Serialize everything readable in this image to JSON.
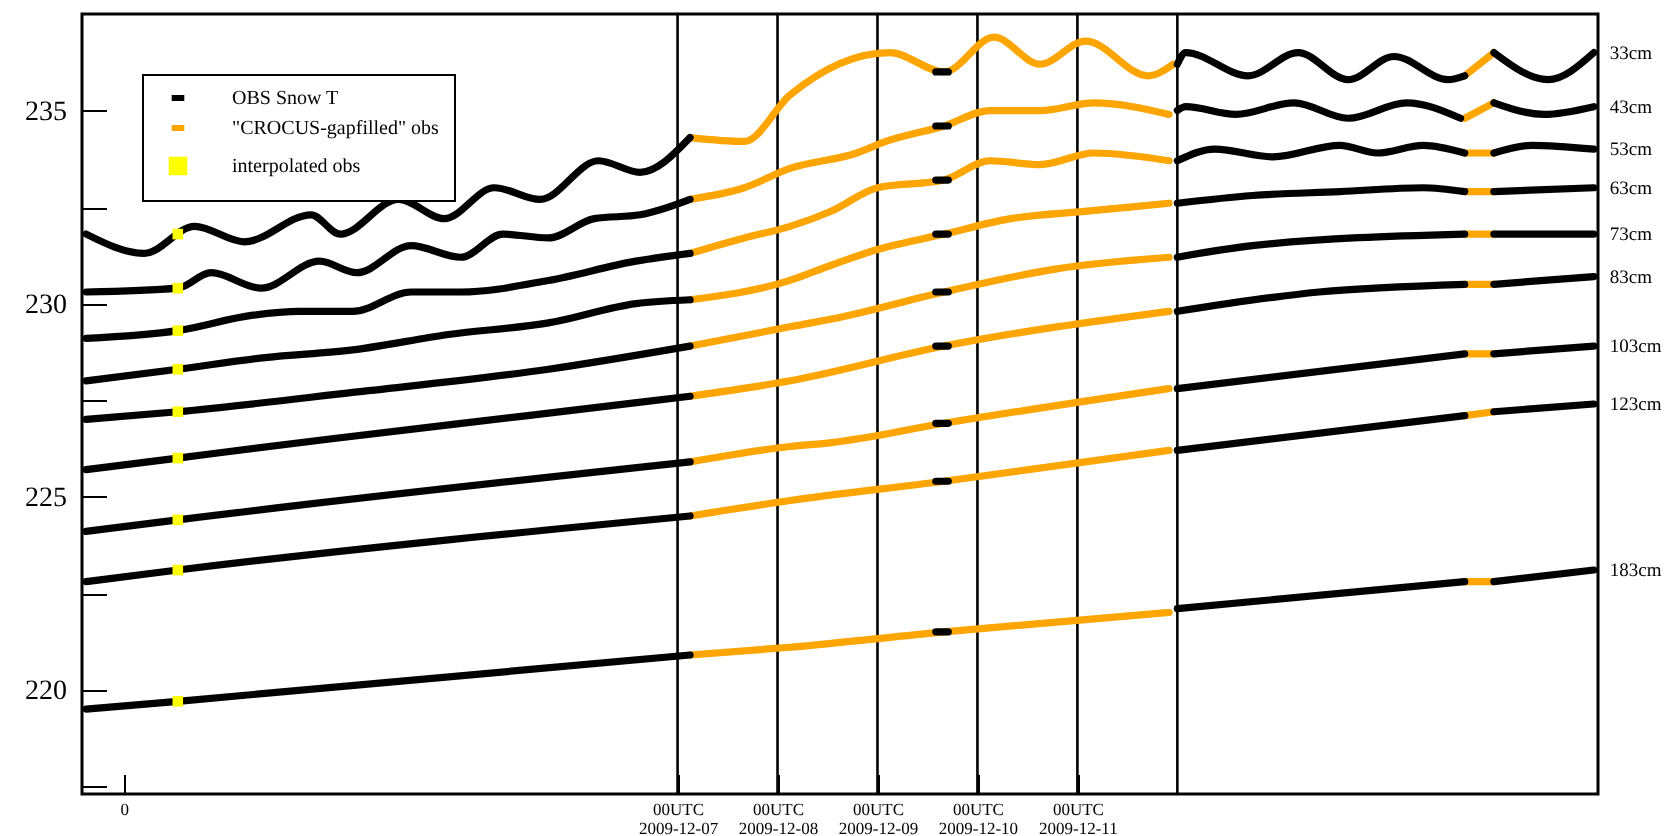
{
  "chart_data": {
    "type": "line",
    "legend": "top left",
    "xlim": [
      "2009-12-01T01:00",
      "2009-12-16T05:00"
    ],
    "ylim": [
      217.3,
      237.5
    ],
    "xticks": [
      {
        "value": "2009-12-01T11:00",
        "label": "0"
      },
      {
        "value": "2009-12-07T00:00",
        "label": "00UTC\n2009-12-07"
      },
      {
        "value": "2009-12-08T00:00",
        "label": "00UTC\n2009-12-08"
      },
      {
        "value": "2009-12-09T00:00",
        "label": "00UTC\n2009-12-09"
      },
      {
        "value": "2009-12-10T00:00",
        "label": "00UTC\n2009-12-10"
      },
      {
        "value": "2009-12-11T00:00",
        "label": "00UTC\n2009-12-11"
      }
    ],
    "yticks": [
      {
        "value": 217.5,
        "label": null
      },
      220,
      {
        "value": 222.5,
        "label": null
      },
      225,
      {
        "value": 227.5,
        "label": null
      },
      230,
      {
        "value": 232.5,
        "label": null
      },
      235
    ],
    "ref_lines": [
      {
        "axis": "x",
        "value": "2009-12-07T00:00",
        "color": "#000000"
      },
      {
        "axis": "x",
        "value": "2009-12-08T00:00",
        "color": "#000000"
      },
      {
        "axis": "x",
        "value": "2009-12-09T00:00",
        "color": "#000000"
      },
      {
        "axis": "x",
        "value": "2009-12-10T00:00",
        "color": "#000000"
      },
      {
        "axis": "x",
        "value": "2009-12-11T00:00",
        "color": "#000000"
      },
      {
        "axis": "x",
        "value": "2009-12-12T00:00",
        "color": "#000000"
      }
    ],
    "series": [
      {
        "name": "OBS Snow T",
        "color": "#000000",
        "x": [
          "2009-12-01T02:00",
          "2009-12-01T16:00",
          "2009-12-02T04:00",
          "2009-12-02T16:00",
          "2009-12-03T08:00",
          "2009-12-03T15:00",
          "2009-12-04T05:00",
          "2009-12-04T16:00",
          "2009-12-05T04:00",
          "2009-12-05T15:00",
          "2009-12-06T05:00",
          "2009-12-06T15:00",
          "2009-12-07T03:00",
          "2009-12-08T03:00",
          "2009-12-09T14:00",
          "2009-12-09T17:00",
          "2009-12-11T01:00",
          "2009-12-12T00:00",
          "2009-12-12T02:00",
          "2009-12-12T17:00",
          "2009-12-13T05:00",
          "2009-12-13T17:00",
          "2009-12-14T04:00",
          "2009-12-14T17:00",
          "2009-12-14T21:00",
          "2009-12-15T01:00",
          "2009-12-15T04:00",
          "2009-12-15T17:00",
          "2009-12-16T04:00"
        ],
        "values": [
          231.8,
          231.3,
          232.0,
          231.6,
          232.3,
          231.8,
          232.7,
          232.2,
          233.0,
          232.7,
          233.7,
          233.4,
          234.3,
          null,
          236.0,
          236.0,
          null,
          236.2,
          236.5,
          235.9,
          236.5,
          235.8,
          236.4,
          235.8,
          235.9,
          null,
          236.5,
          235.8,
          236.5
        ]
      },
      {
        "color": "#000000",
        "x": [
          "2009-12-01T02:00",
          "2009-12-02T00:00",
          "2009-12-02T08:00",
          "2009-12-02T20:00",
          "2009-12-03T10:00",
          "2009-12-03T19:00",
          "2009-12-04T08:00",
          "2009-12-04T20:00",
          "2009-12-05T06:00",
          "2009-12-05T17:00",
          "2009-12-06T04:00",
          "2009-12-06T15:00",
          "2009-12-07T03:00",
          "2009-12-08T03:00",
          "2009-12-09T14:00",
          "2009-12-09T17:00",
          "2009-12-11T01:00",
          "2009-12-12T00:00",
          "2009-12-12T02:00",
          "2009-12-12T14:00",
          "2009-12-13T04:00",
          "2009-12-13T17:00",
          "2009-12-14T07:00",
          "2009-12-14T20:00",
          "2009-12-15T01:00",
          "2009-12-15T04:00",
          "2009-12-15T16:00",
          "2009-12-16T04:00"
        ],
        "values": [
          230.3,
          230.4,
          230.8,
          230.4,
          231.1,
          230.8,
          231.5,
          231.2,
          231.8,
          231.7,
          232.2,
          232.3,
          232.7,
          null,
          234.6,
          234.6,
          null,
          235.0,
          235.1,
          234.9,
          235.2,
          234.8,
          235.2,
          234.8,
          null,
          235.2,
          234.9,
          235.1
        ]
      },
      {
        "color": "#000000",
        "x": [
          "2009-12-01T02:00",
          "2009-12-02T00:00",
          "2009-12-02T18:00",
          "2009-12-03T05:00",
          "2009-12-03T18:00",
          "2009-12-04T08:00",
          "2009-12-04T20:00",
          "2009-12-05T17:00",
          "2009-12-06T14:00",
          "2009-12-07T03:00",
          "2009-12-08T03:00",
          "2009-12-09T14:00",
          "2009-12-09T17:00",
          "2009-12-11T01:00",
          "2009-12-12T00:00",
          "2009-12-12T09:00",
          "2009-12-12T23:00",
          "2009-12-13T15:00",
          "2009-12-14T00:00",
          "2009-12-14T11:00",
          "2009-12-14T21:00",
          "2009-12-15T01:00",
          "2009-12-15T04:00",
          "2009-12-15T13:00",
          "2009-12-16T04:00"
        ],
        "values": [
          229.1,
          229.3,
          229.7,
          229.8,
          229.8,
          230.3,
          230.3,
          230.6,
          231.1,
          231.3,
          null,
          233.2,
          233.2,
          null,
          233.7,
          234.0,
          233.8,
          234.1,
          233.9,
          234.1,
          233.9,
          null,
          233.9,
          234.1,
          234.0
        ]
      },
      {
        "color": "#000000",
        "x": [
          "2009-12-01T02:00",
          "2009-12-02T00:00",
          "2009-12-02T21:00",
          "2009-12-03T18:00",
          "2009-12-04T17:00",
          "2009-12-05T17:00",
          "2009-12-06T14:00",
          "2009-12-07T03:00",
          "2009-12-08T03:00",
          "2009-12-09T14:00",
          "2009-12-09T17:00",
          "2009-12-11T01:00",
          "2009-12-12T00:00",
          "2009-12-12T18:00",
          "2009-12-13T15:00",
          "2009-12-14T11:00",
          "2009-12-14T21:00",
          "2009-12-15T01:00",
          "2009-12-15T04:00",
          "2009-12-16T04:00"
        ],
        "values": [
          228.0,
          228.3,
          228.6,
          228.8,
          229.2,
          229.5,
          230.0,
          230.1,
          null,
          231.8,
          231.8,
          null,
          232.6,
          232.8,
          232.9,
          233.0,
          232.9,
          null,
          232.9,
          233.0
        ]
      },
      {
        "color": "#000000",
        "x": [
          "2009-12-01T02:00",
          "2009-12-02T00:00",
          "2009-12-03T18:00",
          "2009-12-05T17:00",
          "2009-12-07T03:00",
          "2009-12-08T03:00",
          "2009-12-09T14:00",
          "2009-12-09T17:00",
          "2009-12-11T01:00",
          "2009-12-12T00:00",
          "2009-12-12T18:00",
          "2009-12-14T21:00",
          "2009-12-15T01:00",
          "2009-12-15T04:00",
          "2009-12-16T04:00"
        ],
        "values": [
          227.0,
          227.2,
          227.7,
          228.3,
          228.9,
          null,
          230.3,
          230.3,
          null,
          231.2,
          231.5,
          231.8,
          null,
          231.8,
          231.8
        ]
      },
      {
        "color": "#000000",
        "x": [
          "2009-12-01T02:00",
          "2009-12-02T00:00",
          "2009-12-03T13:00",
          "2009-12-05T12:00",
          "2009-12-07T03:00",
          "2009-12-08T03:00",
          "2009-12-09T14:00",
          "2009-12-09T17:00",
          "2009-12-11T01:00",
          "2009-12-12T00:00",
          "2009-12-13T10:00",
          "2009-12-14T21:00",
          "2009-12-15T01:00",
          "2009-12-15T04:00",
          "2009-12-16T04:00"
        ],
        "values": [
          225.7,
          226.0,
          226.5,
          227.1,
          227.6,
          null,
          228.9,
          228.9,
          null,
          229.8,
          230.3,
          230.5,
          null,
          230.5,
          230.7
        ]
      },
      {
        "color": "#000000",
        "x": [
          "2009-12-01T02:00",
          "2009-12-02T00:00",
          "2009-12-07T03:00",
          "2009-12-08T03:00",
          "2009-12-09T14:00",
          "2009-12-09T17:00",
          "2009-12-11T01:00",
          "2009-12-12T00:00",
          "2009-12-14T21:00",
          "2009-12-15T01:00",
          "2009-12-15T04:00",
          "2009-12-16T04:00"
        ],
        "values": [
          224.1,
          224.4,
          225.9,
          null,
          226.9,
          226.9,
          null,
          227.8,
          228.7,
          null,
          228.7,
          228.9
        ]
      },
      {
        "color": "#000000",
        "x": [
          "2009-12-01T02:00",
          "2009-12-02T00:00",
          "2009-12-07T03:00",
          "2009-12-08T03:00",
          "2009-12-09T14:00",
          "2009-12-09T17:00",
          "2009-12-11T01:00",
          "2009-12-12T00:00",
          "2009-12-14T21:00",
          "2009-12-15T01:00",
          "2009-12-15T04:00",
          "2009-12-16T04:00"
        ],
        "values": [
          222.8,
          223.1,
          224.5,
          null,
          225.4,
          225.4,
          null,
          226.2,
          227.1,
          null,
          227.2,
          227.4
        ]
      },
      {
        "color": "#000000",
        "x": [
          "2009-12-01T02:00",
          "2009-12-02T00:00",
          "2009-12-07T03:00",
          "2009-12-08T03:00",
          "2009-12-09T14:00",
          "2009-12-09T17:00",
          "2009-12-11T01:00",
          "2009-12-12T00:00",
          "2009-12-14T21:00",
          "2009-12-15T01:00",
          "2009-12-15T04:00",
          "2009-12-16T04:00"
        ],
        "values": [
          219.5,
          219.7,
          220.9,
          null,
          221.5,
          221.5,
          null,
          222.1,
          222.8,
          null,
          222.8,
          223.1
        ]
      },
      {
        "name": "\"CROCUS-gapfilled\" obs",
        "color": "#ffa500",
        "x": [
          "2009-12-07T03:00",
          "2009-12-07T16:00",
          "2009-12-08T03:00",
          "2009-12-09T03:00",
          "2009-12-09T16:00",
          "2009-12-10T04:00",
          "2009-12-10T15:00",
          "2009-12-11T02:00",
          "2009-12-11T17:00",
          "2009-12-11T23:00",
          "2009-12-13T13:00",
          "2009-12-14T21:00",
          "2009-12-15T04:00"
        ],
        "values": [
          234.3,
          234.2,
          235.4,
          236.5,
          236.0,
          236.9,
          236.2,
          236.8,
          235.9,
          236.2,
          null,
          235.9,
          236.5
        ]
      },
      {
        "color": "#ffa500",
        "x": [
          "2009-12-07T03:00",
          "2009-12-07T16:00",
          "2009-12-08T03:00",
          "2009-12-08T19:00",
          "2009-12-09T02:00",
          "2009-12-09T16:00",
          "2009-12-10T03:00",
          "2009-12-10T15:00",
          "2009-12-11T04:00",
          "2009-12-11T22:00",
          "2009-12-13T13:00",
          "2009-12-14T21:00",
          "2009-12-15T04:00"
        ],
        "values": [
          232.7,
          233.0,
          233.5,
          233.9,
          234.2,
          234.6,
          235.0,
          235.0,
          235.2,
          234.9,
          null,
          234.8,
          235.2
        ]
      },
      {
        "color": "#ffa500",
        "x": [
          "2009-12-07T03:00",
          "2009-12-07T16:00",
          "2009-12-08T03:00",
          "2009-12-08T13:00",
          "2009-12-09T00:00",
          "2009-12-09T16:00",
          "2009-12-10T03:00",
          "2009-12-10T15:00",
          "2009-12-11T04:00",
          "2009-12-11T22:00",
          "2009-12-13T13:00",
          "2009-12-14T21:00",
          "2009-12-15T04:00"
        ],
        "values": [
          231.3,
          231.7,
          232.0,
          232.4,
          233.0,
          233.2,
          233.7,
          233.6,
          233.9,
          233.7,
          null,
          233.9,
          233.9
        ]
      },
      {
        "color": "#ffa500",
        "x": [
          "2009-12-07T03:00",
          "2009-12-08T03:00",
          "2009-12-08T13:00",
          "2009-12-09T00:00",
          "2009-12-09T16:00",
          "2009-12-10T08:00",
          "2009-12-11T03:00",
          "2009-12-11T22:00",
          "2009-12-13T13:00",
          "2009-12-14T21:00",
          "2009-12-15T04:00"
        ],
        "values": [
          230.1,
          230.6,
          231.0,
          231.4,
          231.8,
          232.2,
          232.4,
          232.6,
          null,
          232.9,
          232.9
        ]
      },
      {
        "color": "#ffa500",
        "x": [
          "2009-12-07T03:00",
          "2009-12-08T03:00",
          "2009-12-08T13:00",
          "2009-12-09T16:00",
          "2009-12-10T19:00",
          "2009-12-11T22:00",
          "2009-12-13T13:00",
          "2009-12-14T21:00",
          "2009-12-15T04:00"
        ],
        "values": [
          228.9,
          229.4,
          229.6,
          230.3,
          230.9,
          231.2,
          null,
          231.8,
          231.8
        ]
      },
      {
        "color": "#ffa500",
        "x": [
          "2009-12-07T03:00",
          "2009-12-08T03:00",
          "2009-12-09T16:00",
          "2009-12-11T22:00",
          "2009-12-13T13:00",
          "2009-12-14T21:00",
          "2009-12-15T04:00"
        ],
        "values": [
          227.6,
          228.0,
          228.9,
          229.8,
          null,
          230.5,
          230.5
        ]
      },
      {
        "color": "#ffa500",
        "x": [
          "2009-12-07T03:00",
          "2009-12-08T03:00",
          "2009-12-08T13:00",
          "2009-12-09T16:00",
          "2009-12-11T22:00",
          "2009-12-13T13:00",
          "2009-12-14T21:00",
          "2009-12-15T04:00"
        ],
        "values": [
          225.9,
          226.3,
          226.4,
          226.9,
          227.8,
          null,
          228.7,
          228.7
        ]
      },
      {
        "color": "#ffa500",
        "x": [
          "2009-12-07T03:00",
          "2009-12-08T03:00",
          "2009-12-09T16:00",
          "2009-12-11T22:00",
          "2009-12-13T13:00",
          "2009-12-14T21:00",
          "2009-12-15T04:00"
        ],
        "values": [
          224.5,
          224.9,
          225.4,
          226.2,
          null,
          227.1,
          227.2
        ]
      },
      {
        "color": "#ffa500",
        "x": [
          "2009-12-07T03:00",
          "2009-12-08T03:00",
          "2009-12-09T16:00",
          "2009-12-11T22:00",
          "2009-12-13T13:00",
          "2009-12-14T21:00",
          "2009-12-15T04:00"
        ],
        "values": [
          220.9,
          221.1,
          221.5,
          222.0,
          null,
          222.8,
          222.8
        ]
      },
      {
        "name": "interpolated obs",
        "type": "scatter",
        "marker": "square",
        "color": "#ffff00",
        "x": [
          "2009-12-02T00:00",
          "2009-12-02T00:00",
          "2009-12-02T00:00",
          "2009-12-02T00:00",
          "2009-12-02T00:00",
          "2009-12-02T00:00",
          "2009-12-02T00:00",
          "2009-12-02T00:00",
          "2009-12-02T00:00"
        ],
        "values": [
          231.8,
          230.4,
          229.3,
          228.3,
          227.2,
          226.0,
          224.4,
          223.1,
          219.7
        ]
      }
    ],
    "annotations": [
      {
        "text": "33cm",
        "x": "2009-12-16T04:00",
        "y": 236.5
      },
      {
        "text": "43cm",
        "x": "2009-12-16T04:00",
        "y": 235.1
      },
      {
        "text": "53cm",
        "x": "2009-12-16T04:00",
        "y": 234.0
      },
      {
        "text": "63cm",
        "x": "2009-12-16T04:00",
        "y": 233.0
      },
      {
        "text": "73cm",
        "x": "2009-12-16T04:00",
        "y": 231.8
      },
      {
        "text": "83cm",
        "x": "2009-12-16T04:00",
        "y": 230.7
      },
      {
        "text": "103cm",
        "x": "2009-12-16T04:00",
        "y": 228.9
      },
      {
        "text": "123cm",
        "x": "2009-12-16T04:00",
        "y": 227.4
      },
      {
        "text": "183cm",
        "x": "2009-12-16T04:00",
        "y": 223.1
      }
    ]
  }
}
